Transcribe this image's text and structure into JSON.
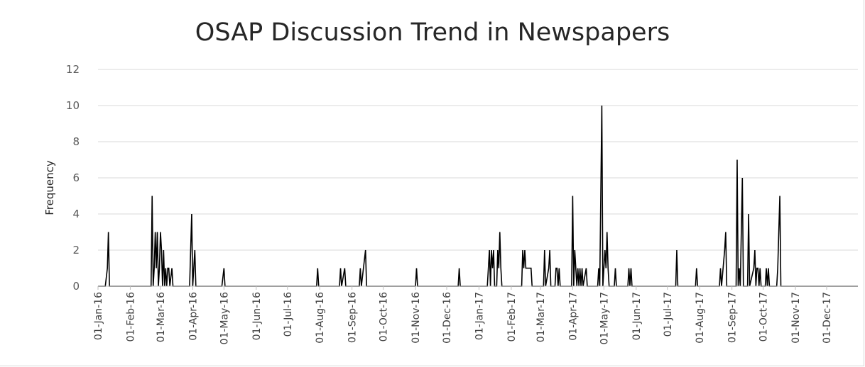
{
  "chart_data": {
    "type": "line",
    "title": "OSAP Discussion Trend in Newspapers",
    "xlabel": "",
    "ylabel": "Frequency",
    "ylim": [
      0,
      12
    ],
    "y_ticks": [
      "0",
      "2",
      "4",
      "6",
      "8",
      "10",
      "12"
    ],
    "x_ticks": [
      "01-Jan-16",
      "01-Feb-16",
      "01-Mar-16",
      "01-Apr-16",
      "01-May-16",
      "01-Jun-16",
      "01-Jul-16",
      "01-Aug-16",
      "01-Sep-16",
      "01-Oct-16",
      "01-Nov-16",
      "01-Dec-16",
      "01-Jan-17",
      "01-Feb-17",
      "01-Mar-17",
      "01-Apr-17",
      "01-May-17",
      "01-Jun-17",
      "01-Jul-17",
      "01-Aug-17",
      "01-Sep-17",
      "01-Oct-17",
      "01-Nov-17",
      "01-Dec-17"
    ],
    "x_range": [
      "2016-01-01",
      "2017-12-31"
    ],
    "grid": "horizontal",
    "line_color": "#000000",
    "series": [
      {
        "points": [
          [
            "2016-01-01",
            0
          ],
          [
            "2016-01-08",
            0
          ],
          [
            "2016-01-10",
            1
          ],
          [
            "2016-01-11",
            3
          ],
          [
            "2016-01-12",
            0
          ],
          [
            "2016-02-21",
            0
          ],
          [
            "2016-02-22",
            5
          ],
          [
            "2016-02-23",
            0
          ],
          [
            "2016-02-24",
            1
          ],
          [
            "2016-02-25",
            3
          ],
          [
            "2016-02-26",
            1
          ],
          [
            "2016-02-27",
            3
          ],
          [
            "2016-02-28",
            0
          ],
          [
            "2016-02-29",
            1
          ],
          [
            "2016-03-01",
            3
          ],
          [
            "2016-03-02",
            2
          ],
          [
            "2016-03-03",
            0
          ],
          [
            "2016-03-04",
            2
          ],
          [
            "2016-03-05",
            0
          ],
          [
            "2016-03-06",
            1
          ],
          [
            "2016-03-07",
            0
          ],
          [
            "2016-03-08",
            1
          ],
          [
            "2016-03-09",
            1
          ],
          [
            "2016-03-10",
            0
          ],
          [
            "2016-03-12",
            1
          ],
          [
            "2016-03-13",
            0
          ],
          [
            "2016-03-29",
            0
          ],
          [
            "2016-03-31",
            4
          ],
          [
            "2016-04-01",
            0
          ],
          [
            "2016-04-03",
            2
          ],
          [
            "2016-04-04",
            0
          ],
          [
            "2016-04-29",
            0
          ],
          [
            "2016-05-01",
            1
          ],
          [
            "2016-05-02",
            0
          ],
          [
            "2016-07-29",
            0
          ],
          [
            "2016-07-30",
            1
          ],
          [
            "2016-07-31",
            0
          ],
          [
            "2016-08-20",
            0
          ],
          [
            "2016-08-21",
            1
          ],
          [
            "2016-08-22",
            0
          ],
          [
            "2016-08-25",
            1
          ],
          [
            "2016-08-26",
            0
          ],
          [
            "2016-09-08",
            0
          ],
          [
            "2016-09-09",
            1
          ],
          [
            "2016-09-10",
            0
          ],
          [
            "2016-09-14",
            2
          ],
          [
            "2016-09-15",
            0
          ],
          [
            "2016-11-01",
            0
          ],
          [
            "2016-11-02",
            1
          ],
          [
            "2016-11-03",
            0
          ],
          [
            "2016-12-12",
            0
          ],
          [
            "2016-12-13",
            1
          ],
          [
            "2016-12-14",
            0
          ],
          [
            "2017-01-09",
            0
          ],
          [
            "2017-01-10",
            1
          ],
          [
            "2017-01-11",
            2
          ],
          [
            "2017-01-12",
            0
          ],
          [
            "2017-01-13",
            2
          ],
          [
            "2017-01-14",
            1
          ],
          [
            "2017-01-15",
            2
          ],
          [
            "2017-01-16",
            0
          ],
          [
            "2017-01-18",
            0
          ],
          [
            "2017-01-19",
            2
          ],
          [
            "2017-01-20",
            1
          ],
          [
            "2017-01-21",
            3
          ],
          [
            "2017-01-22",
            1
          ],
          [
            "2017-01-23",
            0
          ],
          [
            "2017-02-11",
            0
          ],
          [
            "2017-02-12",
            2
          ],
          [
            "2017-02-13",
            1
          ],
          [
            "2017-02-14",
            2
          ],
          [
            "2017-02-15",
            1
          ],
          [
            "2017-02-20",
            1
          ],
          [
            "2017-02-21",
            0
          ],
          [
            "2017-03-04",
            0
          ],
          [
            "2017-03-05",
            2
          ],
          [
            "2017-03-06",
            0
          ],
          [
            "2017-03-09",
            1
          ],
          [
            "2017-03-10",
            2
          ],
          [
            "2017-03-11",
            0
          ],
          [
            "2017-03-15",
            0
          ],
          [
            "2017-03-16",
            1
          ],
          [
            "2017-03-17",
            1
          ],
          [
            "2017-03-18",
            0
          ],
          [
            "2017-03-19",
            1
          ],
          [
            "2017-03-20",
            0
          ],
          [
            "2017-03-31",
            0
          ],
          [
            "2017-04-01",
            5
          ],
          [
            "2017-04-02",
            0
          ],
          [
            "2017-04-03",
            2
          ],
          [
            "2017-04-04",
            1
          ],
          [
            "2017-04-05",
            0
          ],
          [
            "2017-04-06",
            1
          ],
          [
            "2017-04-07",
            0
          ],
          [
            "2017-04-08",
            1
          ],
          [
            "2017-04-09",
            0
          ],
          [
            "2017-04-10",
            1
          ],
          [
            "2017-04-11",
            0
          ],
          [
            "2017-04-14",
            1
          ],
          [
            "2017-04-15",
            0
          ],
          [
            "2017-04-25",
            0
          ],
          [
            "2017-04-26",
            1
          ],
          [
            "2017-04-27",
            0
          ],
          [
            "2017-04-29",
            10
          ],
          [
            "2017-04-30",
            0
          ],
          [
            "2017-05-02",
            2
          ],
          [
            "2017-05-03",
            1
          ],
          [
            "2017-05-04",
            3
          ],
          [
            "2017-05-05",
            1
          ],
          [
            "2017-05-06",
            0
          ],
          [
            "2017-05-11",
            0
          ],
          [
            "2017-05-12",
            1
          ],
          [
            "2017-05-13",
            0
          ],
          [
            "2017-05-24",
            0
          ],
          [
            "2017-05-25",
            1
          ],
          [
            "2017-05-26",
            0
          ],
          [
            "2017-05-27",
            1
          ],
          [
            "2017-05-28",
            0
          ],
          [
            "2017-07-09",
            0
          ],
          [
            "2017-07-10",
            2
          ],
          [
            "2017-07-11",
            0
          ],
          [
            "2017-07-28",
            0
          ],
          [
            "2017-07-29",
            1
          ],
          [
            "2017-07-30",
            0
          ],
          [
            "2017-08-20",
            0
          ],
          [
            "2017-08-21",
            1
          ],
          [
            "2017-08-22",
            0
          ],
          [
            "2017-08-25",
            2
          ],
          [
            "2017-08-26",
            3
          ],
          [
            "2017-08-27",
            0
          ],
          [
            "2017-09-05",
            0
          ],
          [
            "2017-09-06",
            7
          ],
          [
            "2017-09-07",
            0
          ],
          [
            "2017-09-08",
            1
          ],
          [
            "2017-09-09",
            0
          ],
          [
            "2017-09-11",
            6
          ],
          [
            "2017-09-12",
            0
          ],
          [
            "2017-09-16",
            0
          ],
          [
            "2017-09-17",
            4
          ],
          [
            "2017-09-18",
            0
          ],
          [
            "2017-09-22",
            1
          ],
          [
            "2017-09-23",
            2
          ],
          [
            "2017-09-24",
            0
          ],
          [
            "2017-09-25",
            1
          ],
          [
            "2017-09-26",
            1
          ],
          [
            "2017-09-27",
            0
          ],
          [
            "2017-09-28",
            1
          ],
          [
            "2017-09-29",
            0
          ],
          [
            "2017-10-03",
            0
          ],
          [
            "2017-10-04",
            1
          ],
          [
            "2017-10-05",
            0
          ],
          [
            "2017-10-06",
            1
          ],
          [
            "2017-10-07",
            0
          ],
          [
            "2017-10-14",
            0
          ],
          [
            "2017-10-15",
            1
          ],
          [
            "2017-10-16",
            3
          ],
          [
            "2017-10-17",
            5
          ],
          [
            "2017-10-18",
            0
          ],
          [
            "2017-12-31",
            0
          ]
        ]
      }
    ]
  }
}
